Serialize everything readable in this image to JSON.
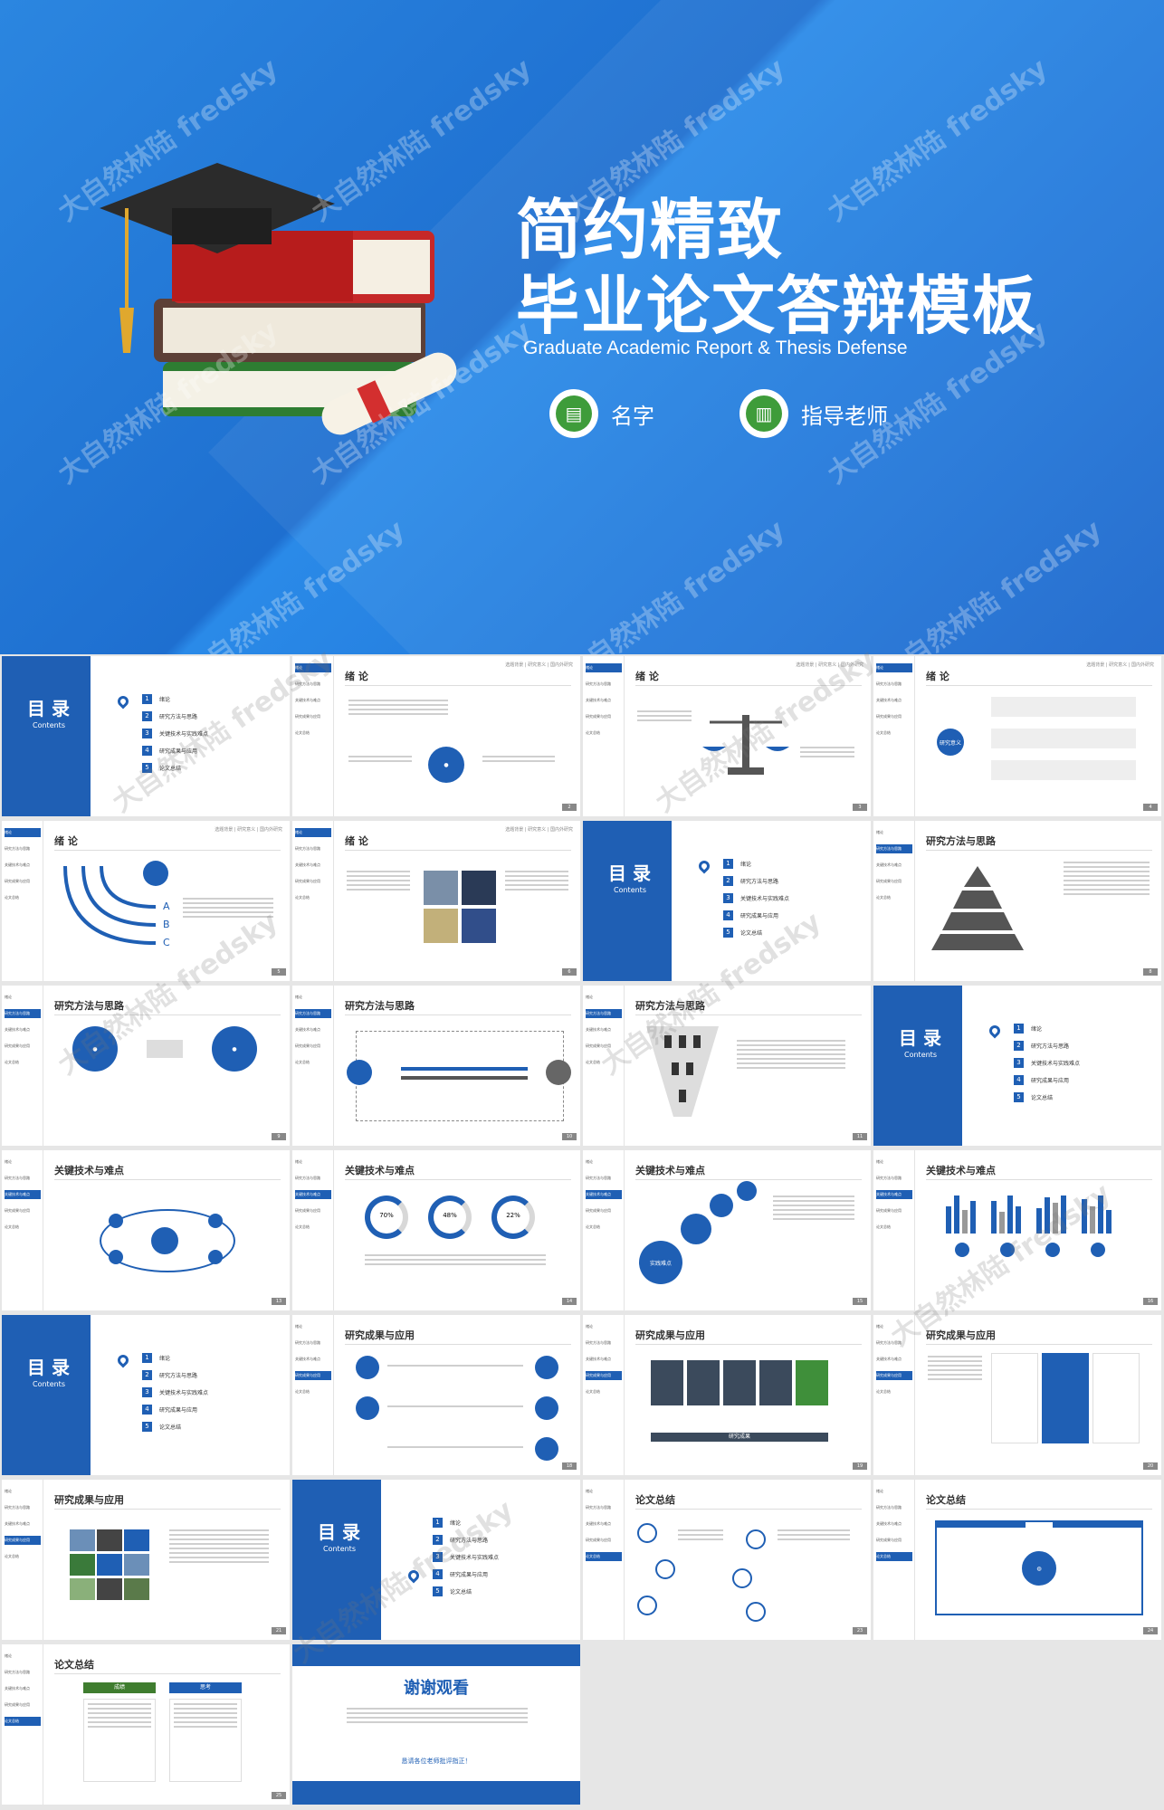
{
  "hero": {
    "title_line1": "简约精致",
    "title_line2": "毕业论文答辩模板",
    "subtitle": "Graduate Academic Report & Thesis Defense",
    "name_label": "名字",
    "advisor_label": "指导老师",
    "watermark": "大自然林陆 fredsky"
  },
  "toc": {
    "heading": "目 录",
    "heading_en": "Contents",
    "items": [
      "绪论",
      "研究方法与思路",
      "关键技术与实践难点",
      "研究成果与应用",
      "论文总结"
    ]
  },
  "sidebar_items": [
    "绪论",
    "研究方法与思路",
    "关键技术与难点",
    "研究成果与应用",
    "论文总结"
  ],
  "crumbs": "选题背景 | 研究意义 | 国内外研究",
  "slides": [
    {
      "title": "绪 论",
      "page": "2"
    },
    {
      "title": "绪 论",
      "page": "3"
    },
    {
      "title": "绪 论",
      "page": "4"
    },
    {
      "title": "绪 论",
      "page": "5"
    },
    {
      "title": "绪 论",
      "page": "6"
    },
    {
      "title": "研究方法与思路",
      "page": "8"
    },
    {
      "title": "研究方法与思路",
      "page": "9"
    },
    {
      "title": "研究方法与思路",
      "page": "10"
    },
    {
      "title": "研究方法与思路",
      "page": "11"
    },
    {
      "title": "关键技术与难点",
      "page": "13"
    },
    {
      "title": "关键技术与难点",
      "page": "14"
    },
    {
      "title": "关键技术与难点",
      "page": "15"
    },
    {
      "title": "关键技术与难点",
      "page": "16"
    },
    {
      "title": "研究成果与应用",
      "page": "18"
    },
    {
      "title": "研究成果与应用",
      "page": "19"
    },
    {
      "title": "研究成果与应用",
      "page": "20"
    },
    {
      "title": "研究成果与应用",
      "page": "21"
    },
    {
      "title": "论文总结",
      "page": "23"
    },
    {
      "title": "论文总结",
      "page": "24"
    },
    {
      "title": "论文总结",
      "page": "25"
    }
  ],
  "misc": {
    "percent1": "70%",
    "percent2": "48%",
    "percent3": "22%",
    "abc": [
      "A",
      "B",
      "C"
    ],
    "research_core": "研究意义",
    "research_result": "研究成果",
    "success": "成绩",
    "think": "思考",
    "thanks_title": "谢谢观看",
    "thanks_footer": "恳请各位老师批评指正！",
    "solution": "实践难点"
  }
}
